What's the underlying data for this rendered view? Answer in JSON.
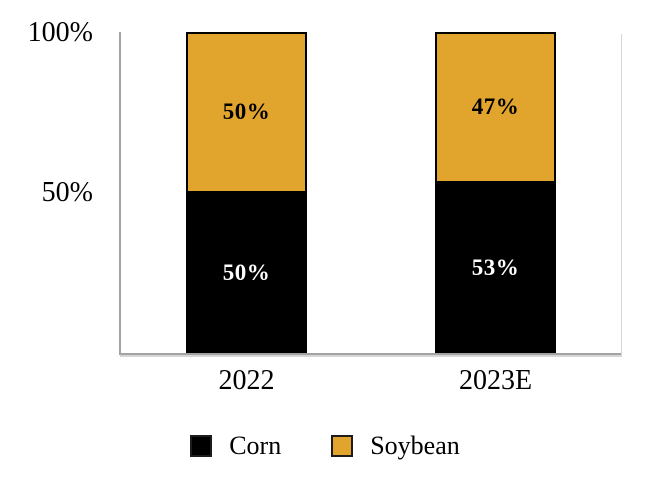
{
  "chart_data": {
    "type": "bar",
    "stacked": true,
    "title": "",
    "xlabel": "",
    "ylabel": "",
    "categories": [
      "2022",
      "2023E"
    ],
    "series": [
      {
        "name": "Corn",
        "color": "#000000",
        "values": [
          50,
          53
        ],
        "data_labels": [
          "50%",
          "53%"
        ],
        "label_color": "#ffffff"
      },
      {
        "name": "Soybean",
        "color": "#e1a42c",
        "values": [
          50,
          47
        ],
        "data_labels": [
          "50%",
          "47%"
        ],
        "label_color": "#000000"
      }
    ],
    "ylim": [
      0,
      100
    ],
    "yticks": [
      {
        "value": 100,
        "label": "100%"
      },
      {
        "value": 50,
        "label": "50%"
      }
    ],
    "grid": false,
    "legend_position": "bottom",
    "axis_color": "#a3a3a3",
    "bar_border_color": "#000000"
  }
}
